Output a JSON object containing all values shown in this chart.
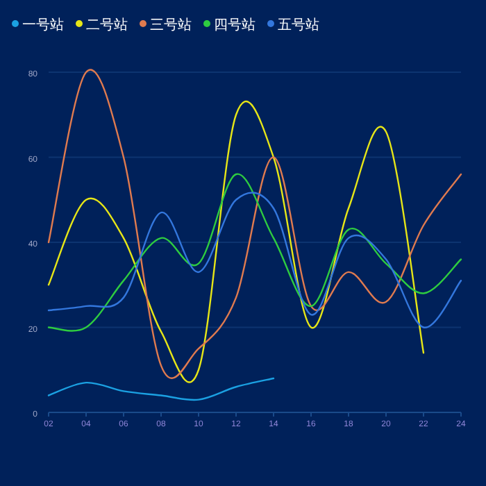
{
  "chart_data": {
    "type": "line",
    "categories": [
      "02",
      "04",
      "06",
      "08",
      "10",
      "12",
      "14",
      "16",
      "18",
      "20",
      "22",
      "24"
    ],
    "series": [
      {
        "name": "一号站",
        "color": "#1ba1e2",
        "values": [
          4,
          7,
          5,
          4,
          3,
          6,
          8,
          null,
          null,
          null,
          null,
          null
        ]
      },
      {
        "name": "二号站",
        "color": "#e6e617",
        "values": [
          30,
          50,
          41,
          19,
          10,
          70,
          60,
          20,
          48,
          66,
          14,
          null
        ]
      },
      {
        "name": "三号站",
        "color": "#e07b4f",
        "values": [
          40,
          80,
          60,
          11,
          15,
          27,
          60,
          25,
          33,
          26,
          44,
          56
        ]
      },
      {
        "name": "四号站",
        "color": "#2ecc40",
        "values": [
          20,
          20,
          31,
          41,
          35,
          56,
          41,
          25,
          43,
          35,
          28,
          36
        ]
      },
      {
        "name": "五号站",
        "color": "#3377dd",
        "values": [
          24,
          25,
          27,
          47,
          33,
          50,
          48,
          23,
          41,
          36,
          20,
          31
        ]
      }
    ],
    "ylim": [
      0,
      80
    ],
    "yticks": [
      0,
      20,
      40,
      60,
      80
    ],
    "grid": "y",
    "legend": "top left"
  }
}
